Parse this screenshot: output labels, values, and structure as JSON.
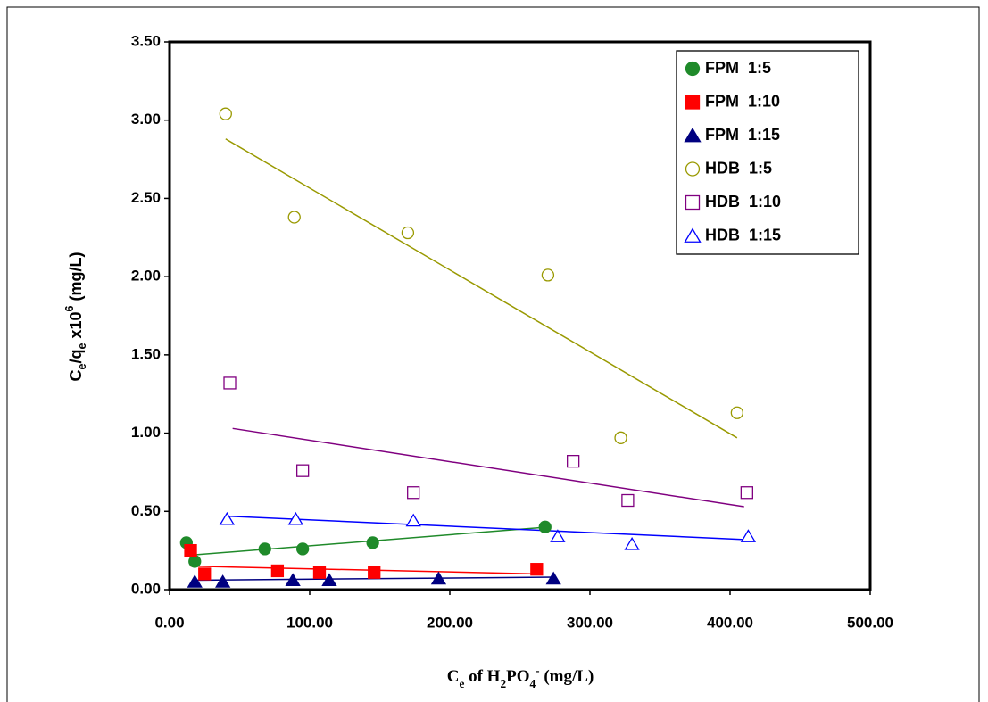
{
  "chart_data": {
    "type": "scatter",
    "xlabel_parts": [
      {
        "text": "C",
        "style": "normal"
      },
      {
        "text": "e",
        "style": "sub"
      },
      {
        "text": " of  H",
        "style": "normal"
      },
      {
        "text": "2",
        "style": "sub"
      },
      {
        "text": "PO",
        "style": "normal"
      },
      {
        "text": "4",
        "style": "sub"
      },
      {
        "text": "-",
        "style": "sup"
      },
      {
        "text": "  (mg/L)",
        "style": "normal"
      }
    ],
    "ylabel_parts": [
      {
        "text": "C",
        "style": "normal"
      },
      {
        "text": "e",
        "style": "sub"
      },
      {
        "text": "/q",
        "style": "normal"
      },
      {
        "text": "e",
        "style": "sub"
      },
      {
        "text": " x10",
        "style": "normal"
      },
      {
        "text": "6",
        "style": "sup"
      },
      {
        "text": " (mg/L)",
        "style": "normal"
      }
    ],
    "xlim": [
      0,
      500
    ],
    "ylim": [
      0,
      3.5
    ],
    "xticks": [
      {
        "value": 0,
        "label": "0.00"
      },
      {
        "value": 100,
        "label": "100.00"
      },
      {
        "value": 200,
        "label": "200.00"
      },
      {
        "value": 300,
        "label": "300.00"
      },
      {
        "value": 400,
        "label": "400.00"
      },
      {
        "value": 500,
        "label": "500.00"
      }
    ],
    "yticks": [
      {
        "value": 0,
        "label": "0.00"
      },
      {
        "value": 0.5,
        "label": "0.50"
      },
      {
        "value": 1,
        "label": "1.00"
      },
      {
        "value": 1.5,
        "label": "1.50"
      },
      {
        "value": 2,
        "label": "2.00"
      },
      {
        "value": 2.5,
        "label": "2.50"
      },
      {
        "value": 3,
        "label": "3.00"
      },
      {
        "value": 3.5,
        "label": "3.50"
      }
    ],
    "legend": "top-right",
    "series": [
      {
        "name": "FPM  1:5",
        "color": "#1f8a2a",
        "marker": "circle",
        "filled": true,
        "x": [
          12,
          18,
          68,
          95,
          145,
          268
        ],
        "values": [
          0.3,
          0.18,
          0.26,
          0.26,
          0.3,
          0.4
        ],
        "trendline": {
          "x": [
            15,
            270
          ],
          "y": [
            0.22,
            0.4
          ]
        }
      },
      {
        "name": "FPM  1:10",
        "color": "#ff0000",
        "marker": "square",
        "filled": true,
        "x": [
          15,
          25,
          77,
          107,
          146,
          262
        ],
        "values": [
          0.25,
          0.1,
          0.12,
          0.11,
          0.11,
          0.13
        ],
        "trendline": {
          "x": [
            15,
            265
          ],
          "y": [
            0.15,
            0.1
          ]
        }
      },
      {
        "name": "FPM  1:15",
        "color": "#000080",
        "marker": "triangle",
        "filled": true,
        "x": [
          18,
          38,
          88,
          114,
          192,
          274
        ],
        "values": [
          0.05,
          0.05,
          0.06,
          0.06,
          0.07,
          0.07
        ],
        "trendline": {
          "x": [
            18,
            275
          ],
          "y": [
            0.06,
            0.08
          ]
        }
      },
      {
        "name": "HDB  1:5",
        "color": "#999900",
        "marker": "circle",
        "filled": false,
        "x": [
          40,
          89,
          170,
          270,
          322,
          405
        ],
        "values": [
          3.04,
          2.38,
          2.28,
          2.01,
          0.97,
          1.13
        ],
        "trendline": {
          "x": [
            40,
            405
          ],
          "y": [
            2.88,
            0.97
          ]
        }
      },
      {
        "name": "HDB  1:10",
        "color": "#800080",
        "marker": "square",
        "filled": false,
        "x": [
          43,
          95,
          174,
          288,
          327,
          412
        ],
        "values": [
          1.32,
          0.76,
          0.62,
          0.82,
          0.57,
          0.62
        ],
        "trendline": {
          "x": [
            45,
            410
          ],
          "y": [
            1.03,
            0.53
          ]
        }
      },
      {
        "name": "HDB  1:15",
        "color": "#0000ff",
        "marker": "triangle",
        "filled": false,
        "x": [
          41,
          90,
          174,
          277,
          330,
          413
        ],
        "values": [
          0.45,
          0.45,
          0.44,
          0.34,
          0.29,
          0.34
        ],
        "trendline": {
          "x": [
            40,
            410
          ],
          "y": [
            0.47,
            0.32
          ]
        }
      }
    ]
  }
}
